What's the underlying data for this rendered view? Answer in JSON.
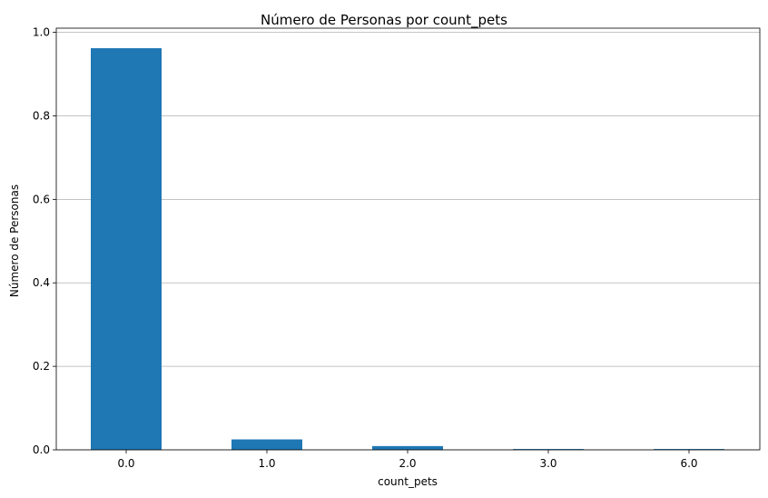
{
  "chart_data": {
    "type": "bar",
    "title": "Número de Personas por count_pets",
    "xlabel": "count_pets",
    "ylabel": "Número de Personas",
    "categories": [
      "0.0",
      "1.0",
      "2.0",
      "3.0",
      "6.0"
    ],
    "values": [
      0.962,
      0.025,
      0.009,
      0.002,
      0.002
    ],
    "ylim": [
      0,
      1.01
    ],
    "yticks": [
      "0.0",
      "0.2",
      "0.4",
      "0.6",
      "0.8",
      "1.0"
    ],
    "grid": "y",
    "bar_color": "#1f77b4"
  }
}
